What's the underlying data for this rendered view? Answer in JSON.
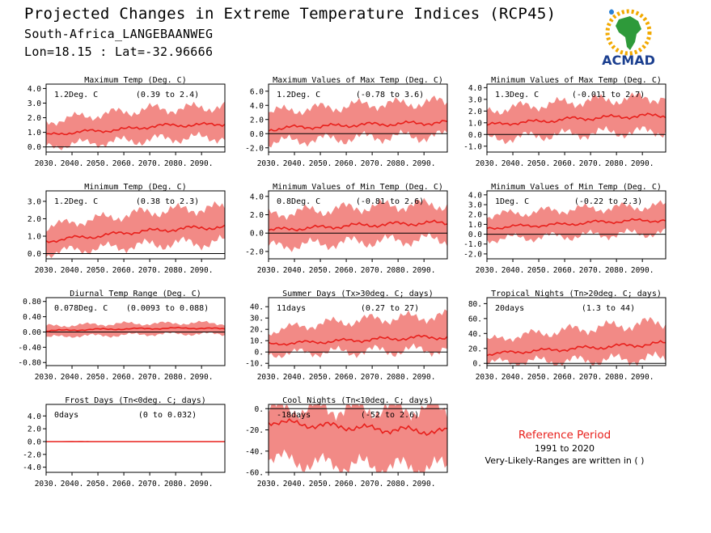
{
  "header": {
    "title": "Projected Changes in Extreme Temperature Indices (RCP45)",
    "station": "South-Africa_LANGEBAANWEG",
    "coords": "Lon=18.15 : Lat=-32.96666"
  },
  "logo": {
    "text": "ACMAD"
  },
  "reference": {
    "title": "Reference Period",
    "years": "1991 to 2020",
    "note": "Very-Likely-Ranges are written in ( )"
  },
  "colors": {
    "band": "#f28a86",
    "line": "#e8201c",
    "zero": "#000000"
  },
  "chart_data": [
    {
      "type": "area",
      "title": "Maximum Temp (Deg. C)",
      "summary": "1.2Deg. C",
      "range": "(0.39 to 2.4)",
      "x_ticks": [
        "2030.",
        "2040.",
        "2050.",
        "2060.",
        "2070.",
        "2080.",
        "2090."
      ],
      "y_ticks": [
        "0.0",
        "1.0",
        "2.0",
        "3.0",
        "4.0"
      ],
      "ylim": [
        -0.35,
        4.3
      ],
      "x": [
        2030,
        2040,
        2050,
        2060,
        2070,
        2080,
        2090,
        2099
      ],
      "series": [
        {
          "values": [
            0.8,
            1.0,
            1.1,
            1.2,
            1.4,
            1.5,
            1.5,
            1.6
          ]
        }
      ],
      "band_low": [
        0.0,
        0.2,
        0.3,
        0.4,
        0.5,
        0.6,
        0.6,
        0.7
      ],
      "band_high": [
        1.7,
        2.0,
        2.2,
        2.4,
        2.6,
        2.6,
        2.7,
        2.8
      ]
    },
    {
      "type": "area",
      "title": "Maximum Values of Max Temp (Deg. C)",
      "summary": "1.2Deg. C",
      "range": "(-0.78 to 3.6)",
      "x_ticks": [
        "2030.",
        "2040.",
        "2050.",
        "2060.",
        "2070.",
        "2080.",
        "2090."
      ],
      "y_ticks": [
        "-2.0",
        "0.0",
        "2.0",
        "4.0",
        "6.0"
      ],
      "ylim": [
        -2.6,
        7.0
      ],
      "x": [
        2030,
        2040,
        2050,
        2060,
        2070,
        2080,
        2090,
        2099
      ],
      "series": [
        {
          "values": [
            0.6,
            0.9,
            1.0,
            1.2,
            1.3,
            1.4,
            1.5,
            1.6
          ]
        }
      ],
      "band_low": [
        -1.2,
        -1.0,
        -0.8,
        -0.7,
        -0.5,
        -0.4,
        -0.4,
        -0.3
      ],
      "band_high": [
        3.0,
        3.4,
        3.6,
        3.9,
        4.2,
        4.2,
        4.4,
        4.5
      ]
    },
    {
      "type": "area",
      "title": "Minimum Values of Max Temp (Deg. C)",
      "summary": "1.3Deg. C",
      "range": "(-0.011 to 2.7)",
      "x_ticks": [
        "2030.",
        "2040.",
        "2050.",
        "2060.",
        "2070.",
        "2080.",
        "2090."
      ],
      "y_ticks": [
        "-1.0",
        "0.0",
        "1.0",
        "2.0",
        "3.0",
        "4.0"
      ],
      "ylim": [
        -1.5,
        4.3
      ],
      "x": [
        2030,
        2040,
        2050,
        2060,
        2070,
        2080,
        2090,
        2099
      ],
      "series": [
        {
          "values": [
            0.8,
            1.0,
            1.1,
            1.3,
            1.4,
            1.5,
            1.6,
            1.6
          ]
        }
      ],
      "band_low": [
        -0.4,
        -0.3,
        -0.1,
        0.0,
        0.1,
        0.2,
        0.2,
        0.3
      ],
      "band_high": [
        2.0,
        2.3,
        2.5,
        2.7,
        2.9,
        3.0,
        3.1,
        3.2
      ]
    },
    {
      "type": "area",
      "title": "Minimum Temp (Deg. C)",
      "summary": "1.2Deg. C",
      "range": "(0.38 to 2.3)",
      "x_ticks": [
        "2030.",
        "2040.",
        "2050.",
        "2060.",
        "2070.",
        "2080.",
        "2090."
      ],
      "y_ticks": [
        "0.0",
        "1.0",
        "2.0",
        "3.0"
      ],
      "ylim": [
        -0.3,
        3.6
      ],
      "x": [
        2030,
        2040,
        2050,
        2060,
        2070,
        2080,
        2090,
        2099
      ],
      "series": [
        {
          "values": [
            0.7,
            0.9,
            1.0,
            1.2,
            1.3,
            1.4,
            1.5,
            1.5
          ]
        }
      ],
      "band_low": [
        0.0,
        0.2,
        0.3,
        0.4,
        0.5,
        0.6,
        0.6,
        0.7
      ],
      "band_high": [
        1.5,
        1.8,
        2.0,
        2.2,
        2.4,
        2.5,
        2.6,
        2.6
      ]
    },
    {
      "type": "area",
      "title": "Minimum Values of Min Temp (Deg. C)",
      "summary": "0.8Deg. C",
      "range": "(-0.81 to 2.6)",
      "x_ticks": [
        "2030.",
        "2040.",
        "2050.",
        "2060.",
        "2070.",
        "2080.",
        "2090."
      ],
      "y_ticks": [
        "-2.0",
        "0.0",
        "2.0",
        "4.0"
      ],
      "ylim": [
        -2.8,
        4.6
      ],
      "x": [
        2030,
        2040,
        2050,
        2060,
        2070,
        2080,
        2090,
        2099
      ],
      "series": [
        {
          "values": [
            0.3,
            0.5,
            0.6,
            0.8,
            0.9,
            1.0,
            1.1,
            1.1
          ]
        }
      ],
      "band_low": [
        -1.5,
        -1.3,
        -1.2,
        -1.0,
        -0.9,
        -0.8,
        -0.7,
        -0.7
      ],
      "band_high": [
        2.0,
        2.3,
        2.5,
        2.7,
        2.9,
        3.0,
        3.1,
        3.1
      ]
    },
    {
      "type": "area",
      "title": "Minimum Values of Min Temp (Deg. C)",
      "summary": "1Deg. C",
      "range": "(-0.22 to 2.3)",
      "x_ticks": [
        "2030.",
        "2040.",
        "2050.",
        "2060.",
        "2070.",
        "2080.",
        "2090."
      ],
      "y_ticks": [
        "-2.0",
        "-1.0",
        "0.0",
        "1.0",
        "2.0",
        "3.0",
        "4.0"
      ],
      "ylim": [
        -2.5,
        4.4
      ],
      "x": [
        2030,
        2040,
        2050,
        2060,
        2070,
        2080,
        2090,
        2099
      ],
      "series": [
        {
          "values": [
            0.6,
            0.8,
            0.9,
            1.0,
            1.2,
            1.3,
            1.4,
            1.4
          ]
        }
      ],
      "band_low": [
        -0.5,
        -0.4,
        -0.3,
        -0.2,
        -0.1,
        0.0,
        0.1,
        0.1
      ],
      "band_high": [
        1.9,
        2.1,
        2.3,
        2.5,
        2.6,
        2.7,
        2.8,
        2.9
      ]
    },
    {
      "type": "area",
      "title": "Diurnal Temp Range (Deg. C)",
      "summary": "0.078Deg. C",
      "range": "(0.0093 to 0.088)",
      "x_ticks": [
        "2030.",
        "2040.",
        "2050.",
        "2060.",
        "2070.",
        "2080.",
        "2090."
      ],
      "y_ticks": [
        "-0.80",
        "-0.40",
        "0.00",
        "0.40",
        "0.80"
      ],
      "ylim": [
        -0.88,
        0.9
      ],
      "x": [
        2030,
        2040,
        2050,
        2060,
        2070,
        2080,
        2090,
        2099
      ],
      "series": [
        {
          "values": [
            0.03,
            0.05,
            0.07,
            0.08,
            0.09,
            0.1,
            0.1,
            0.08
          ]
        }
      ],
      "band_low": [
        -0.15,
        -0.1,
        -0.1,
        -0.08,
        -0.06,
        -0.05,
        -0.05,
        -0.06
      ],
      "band_high": [
        0.15,
        0.18,
        0.2,
        0.22,
        0.22,
        0.23,
        0.24,
        0.22
      ]
    },
    {
      "type": "area",
      "title": "Summer Days (Tx>30deg. C; days)",
      "summary": "11days",
      "range": "(0.27 to 27)",
      "x_ticks": [
        "2030.",
        "2040.",
        "2050.",
        "2060.",
        "2070.",
        "2080.",
        "2090."
      ],
      "y_ticks": [
        "-10.",
        "0.",
        "10.",
        "20.",
        "30.",
        "40."
      ],
      "ylim": [
        -12,
        48
      ],
      "x": [
        2030,
        2040,
        2050,
        2060,
        2070,
        2080,
        2090,
        2099
      ],
      "series": [
        {
          "values": [
            7,
            8,
            9,
            10,
            11,
            12,
            13,
            13
          ]
        }
      ],
      "band_low": [
        -2,
        -1,
        0,
        0,
        1,
        1,
        2,
        2
      ],
      "band_high": [
        18,
        22,
        25,
        27,
        29,
        30,
        31,
        32
      ]
    },
    {
      "type": "area",
      "title": "Tropical Nights (Tn>20deg. C; days)",
      "summary": "20days",
      "range": "(1.3 to 44)",
      "x_ticks": [
        "2030.",
        "2040.",
        "2050.",
        "2060.",
        "2070.",
        "2080.",
        "2090."
      ],
      "y_ticks": [
        "0.",
        "20.",
        "40.",
        "60.",
        "80."
      ],
      "ylim": [
        -3,
        88
      ],
      "x": [
        2030,
        2040,
        2050,
        2060,
        2070,
        2080,
        2090,
        2099
      ],
      "series": [
        {
          "values": [
            12,
            15,
            17,
            19,
            21,
            23,
            25,
            27
          ]
        }
      ],
      "band_low": [
        1,
        2,
        3,
        3,
        4,
        5,
        6,
        7
      ],
      "band_high": [
        30,
        36,
        40,
        44,
        47,
        50,
        53,
        55
      ]
    },
    {
      "type": "area",
      "title": "Frost Days (Tn<0deg. C; days)",
      "summary": "0days",
      "range": "(0 to 0.032)",
      "x_ticks": [
        "2030.",
        "2040.",
        "2050.",
        "2060.",
        "2070.",
        "2080.",
        "2090."
      ],
      "y_ticks": [
        "-4.0",
        "-2.0",
        "0.0",
        "2.0",
        "4.0"
      ],
      "ylim": [
        -4.8,
        5.8
      ],
      "x": [
        2030,
        2040,
        2050,
        2060,
        2070,
        2080,
        2090,
        2099
      ],
      "series": [
        {
          "values": [
            0,
            0,
            0,
            0,
            0,
            0,
            0,
            0
          ]
        }
      ],
      "band_low": [
        0,
        0,
        0,
        0,
        0,
        0,
        0,
        0
      ],
      "band_high": [
        0,
        0.1,
        0,
        0,
        0,
        0,
        0,
        0
      ]
    },
    {
      "type": "area",
      "title": "Cool Nights (Tn<10deg. C; days)",
      "summary": "-18days",
      "range": "(-52 to 2.6)",
      "x_ticks": [
        "2030.",
        "2040.",
        "2050.",
        "2060.",
        "2070.",
        "2080.",
        "2090."
      ],
      "y_ticks": [
        "-60.",
        "-40.",
        "-20.",
        "0."
      ],
      "ylim": [
        -60,
        4
      ],
      "x": [
        2030,
        2040,
        2050,
        2060,
        2070,
        2080,
        2090,
        2099
      ],
      "series": [
        {
          "values": [
            -12,
            -14,
            -16,
            -17,
            -19,
            -20,
            -21,
            -22
          ]
        }
      ],
      "band_low": [
        -45,
        -50,
        -52,
        -53,
        -54,
        -55,
        -55,
        -55
      ],
      "band_high": [
        0,
        0,
        0,
        0,
        0,
        0,
        0,
        0
      ]
    }
  ]
}
